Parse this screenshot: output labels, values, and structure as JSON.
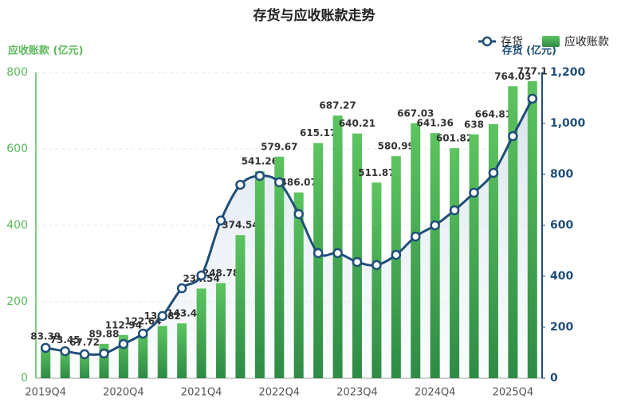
{
  "chart_data": {
    "type": "bar-line",
    "title": "存货与应收账款走势",
    "y_label": "应收账款 (亿元)",
    "y2_label": "存货 (亿元)",
    "categories": [
      "2019Q4",
      null,
      null,
      null,
      "2020Q4",
      null,
      null,
      null,
      "2021Q4",
      null,
      null,
      null,
      "2022Q4",
      null,
      null,
      null,
      "2023Q4",
      null,
      null,
      null,
      "2024Q4",
      null,
      null,
      null,
      "2025Q4",
      null
    ],
    "series": [
      {
        "name": "存货",
        "type": "line",
        "axis": "y2",
        "color": "#1f4e79",
        "values": [
          119,
          106,
          94,
          97,
          134,
          175,
          244,
          353,
          403,
          619,
          759,
          794,
          769,
          644,
          491,
          491,
          456,
          444,
          484,
          556,
          600,
          659,
          728,
          806,
          950,
          1097
        ]
      },
      {
        "name": "应收账款",
        "type": "bar",
        "axis": "y",
        "color": "#4caf50",
        "values": [
          83.39,
          73.45,
          67.72,
          89.88,
          112.94,
          122.64,
          136.82,
          143.4,
          234.54,
          248.78,
          374.54,
          541.26,
          579.67,
          486.07,
          615.17,
          687.27,
          640.21,
          511.87,
          580.99,
          667.03,
          641.36,
          601.82,
          638,
          664.81,
          764.03,
          777.1
        ]
      }
    ],
    "ylim": [
      0,
      800
    ],
    "yticks": [
      0,
      200,
      400,
      600,
      800
    ],
    "y2lim": [
      0,
      1200
    ],
    "y2ticks": [
      0,
      200,
      400,
      600,
      800,
      {
        "value": 1000,
        "label": "1,000"
      },
      {
        "value": 1200,
        "label": "1,200"
      }
    ],
    "grid": true,
    "legend": "top-right"
  }
}
